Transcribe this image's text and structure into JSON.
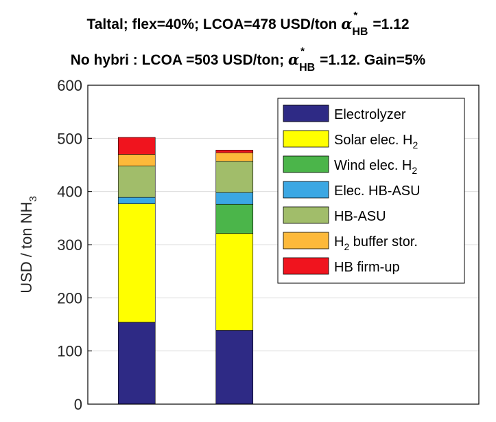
{
  "title": {
    "line1_text": "Taltal; flex=40%; LCOA=478 USD/ton ",
    "line1_sym": "α",
    "line1_sup": "*",
    "line1_sub": "HB",
    "line1_tail": "=1.12",
    "line2_text": "No hybri : LCOA =503 USD/ton; ",
    "line2_sym": "α",
    "line2_sup": "*",
    "line2_sub": "HB",
    "line2_tail": "=1.12. Gain=5%"
  },
  "chart_data": {
    "type": "bar",
    "stacked": true,
    "categories": [
      "",
      ""
    ],
    "ylabel": "USD / ton NH",
    "ylabel_sub": "3",
    "ylim": [
      0,
      600
    ],
    "yticks": [
      0,
      100,
      200,
      300,
      400,
      500,
      600
    ],
    "grid": "horizontal",
    "legend_position": "top-right",
    "series": [
      {
        "name": "Electrolyzer",
        "name_sub": "",
        "name_tail": "",
        "color": "#2e2a85",
        "values": [
          154,
          139
        ]
      },
      {
        "name": "Solar elec. H",
        "name_sub": "2",
        "name_tail": "",
        "color": "#ffff00",
        "values": [
          223,
          182
        ]
      },
      {
        "name": "Wind elec. H",
        "name_sub": "2",
        "name_tail": "",
        "color": "#4bb54a",
        "values": [
          0,
          55
        ]
      },
      {
        "name": "Elec. HB-ASU",
        "name_sub": "",
        "name_tail": "",
        "color": "#3ba7e3",
        "values": [
          12,
          22
        ]
      },
      {
        "name": "HB-ASU",
        "name_sub": "",
        "name_tail": "",
        "color": "#a1bd6a",
        "values": [
          59,
          59
        ]
      },
      {
        "name": "H",
        "name_sub": "2",
        "name_tail": " buffer stor.",
        "color": "#fdb93a",
        "values": [
          22,
          16
        ]
      },
      {
        "name": "HB firm-up",
        "name_sub": "",
        "name_tail": "",
        "color": "#f0141e",
        "values": [
          32,
          5
        ]
      }
    ]
  }
}
